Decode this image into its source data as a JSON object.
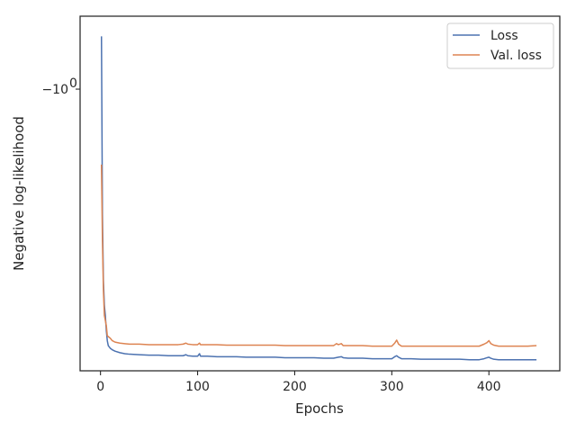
{
  "chart_data": {
    "type": "line",
    "title": "",
    "xlabel": "Epochs",
    "ylabel": "Negative log-likelihood",
    "xlim": [
      -21,
      473
    ],
    "ylim": [
      -1.56,
      -0.855
    ],
    "yscale": "symlog",
    "grid": false,
    "legend_position": "top-right",
    "x_ticks": [
      {
        "value": 0,
        "label": "0"
      },
      {
        "value": 100,
        "label": "100"
      },
      {
        "value": 200,
        "label": "200"
      },
      {
        "value": 300,
        "label": "300"
      },
      {
        "value": 400,
        "label": "400"
      }
    ],
    "y_ticks": [
      {
        "value": -1,
        "label": "−10",
        "sup": "0"
      }
    ],
    "series": [
      {
        "name": "Loss",
        "color": "#4c72b0",
        "x": [
          1,
          2,
          3,
          4,
          5,
          6,
          7,
          8,
          10,
          12,
          15,
          20,
          25,
          30,
          40,
          50,
          60,
          70,
          80,
          85,
          88,
          90,
          95,
          100,
          102,
          103,
          105,
          110,
          120,
          130,
          140,
          150,
          160,
          170,
          180,
          190,
          200,
          210,
          220,
          230,
          240,
          245,
          248,
          250,
          255,
          260,
          270,
          280,
          290,
          300,
          303,
          305,
          307,
          310,
          320,
          330,
          340,
          350,
          360,
          370,
          380,
          390,
          395,
          398,
          400,
          402,
          405,
          410,
          420,
          430,
          440,
          449
        ],
        "y": [
          -0.895,
          -1.25,
          -1.38,
          -1.43,
          -1.45,
          -1.48,
          -1.5,
          -1.51,
          -1.515,
          -1.518,
          -1.521,
          -1.524,
          -1.526,
          -1.527,
          -1.528,
          -1.529,
          -1.529,
          -1.53,
          -1.53,
          -1.53,
          -1.528,
          -1.53,
          -1.531,
          -1.531,
          -1.526,
          -1.531,
          -1.531,
          -1.531,
          -1.532,
          -1.532,
          -1.532,
          -1.533,
          -1.533,
          -1.533,
          -1.533,
          -1.534,
          -1.534,
          -1.534,
          -1.534,
          -1.535,
          -1.535,
          -1.533,
          -1.532,
          -1.534,
          -1.535,
          -1.535,
          -1.535,
          -1.536,
          -1.536,
          -1.536,
          -1.532,
          -1.53,
          -1.533,
          -1.536,
          -1.536,
          -1.537,
          -1.537,
          -1.537,
          -1.537,
          -1.537,
          -1.538,
          -1.538,
          -1.536,
          -1.534,
          -1.533,
          -1.535,
          -1.537,
          -1.538,
          -1.538,
          -1.538,
          -1.538,
          -1.538
        ]
      },
      {
        "name": "Val. loss",
        "color": "#dd8452",
        "x": [
          1,
          2,
          3,
          4,
          5,
          6,
          7,
          8,
          10,
          12,
          15,
          20,
          25,
          30,
          40,
          50,
          60,
          70,
          80,
          85,
          88,
          90,
          95,
          100,
          102,
          103,
          105,
          110,
          120,
          130,
          140,
          150,
          160,
          170,
          180,
          190,
          200,
          210,
          220,
          230,
          240,
          243,
          245,
          248,
          250,
          255,
          260,
          270,
          280,
          290,
          300,
          303,
          305,
          307,
          310,
          320,
          330,
          340,
          350,
          360,
          370,
          380,
          390,
          395,
          398,
          400,
          402,
          405,
          410,
          420,
          430,
          440,
          449
        ],
        "y": [
          -1.15,
          -1.3,
          -1.4,
          -1.45,
          -1.46,
          -1.47,
          -1.49,
          -1.492,
          -1.495,
          -1.5,
          -1.503,
          -1.505,
          -1.506,
          -1.507,
          -1.507,
          -1.508,
          -1.508,
          -1.508,
          -1.508,
          -1.507,
          -1.505,
          -1.507,
          -1.508,
          -1.508,
          -1.505,
          -1.508,
          -1.508,
          -1.508,
          -1.508,
          -1.509,
          -1.509,
          -1.509,
          -1.509,
          -1.509,
          -1.509,
          -1.51,
          -1.51,
          -1.51,
          -1.51,
          -1.51,
          -1.51,
          -1.506,
          -1.508,
          -1.506,
          -1.51,
          -1.51,
          -1.51,
          -1.51,
          -1.511,
          -1.511,
          -1.511,
          -1.505,
          -1.499,
          -1.507,
          -1.511,
          -1.511,
          -1.511,
          -1.511,
          -1.511,
          -1.511,
          -1.511,
          -1.511,
          -1.511,
          -1.507,
          -1.504,
          -1.5,
          -1.506,
          -1.509,
          -1.511,
          -1.511,
          -1.511,
          -1.511,
          -1.51
        ]
      }
    ]
  }
}
